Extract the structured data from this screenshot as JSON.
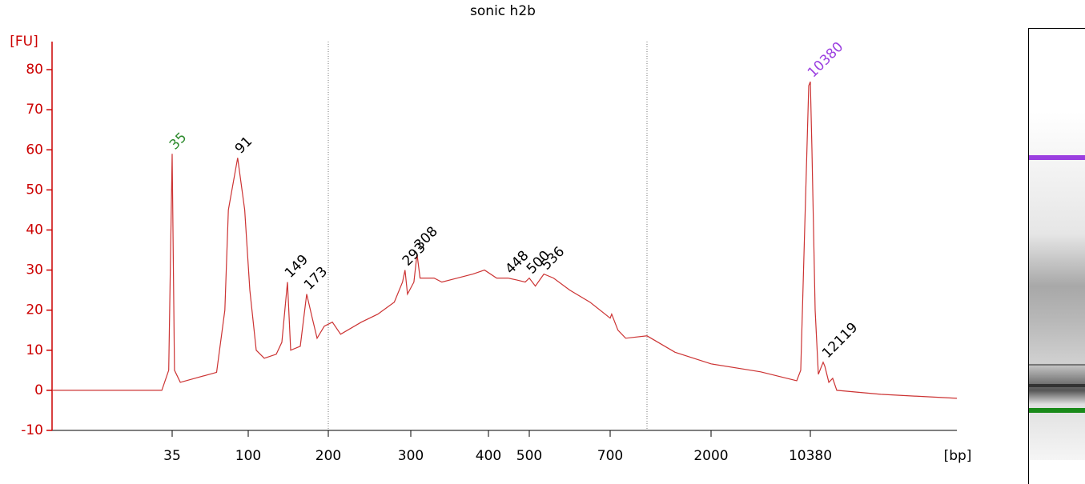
{
  "chart_data": {
    "type": "line",
    "title": "sonic h2b",
    "ylabel": "[FU]",
    "xlabel": "[bp]",
    "color": "#cc3333",
    "axis_color": "#cc0000",
    "xlim": [
      0,
      28000
    ],
    "xticks": [
      35,
      100,
      200,
      300,
      400,
      500,
      700,
      2000,
      10380
    ],
    "ylim": [
      -10,
      87
    ],
    "yticks": [
      -10,
      0,
      10,
      20,
      30,
      40,
      50,
      60,
      70,
      80
    ],
    "x": [
      0,
      15,
      32,
      34,
      35,
      37,
      42,
      73,
      80,
      83,
      91,
      97,
      102,
      110,
      120,
      135,
      142,
      149,
      153,
      165,
      173,
      180,
      186,
      195,
      205,
      215,
      240,
      260,
      280,
      290,
      293,
      296,
      304,
      308,
      312,
      330,
      340,
      360,
      380,
      395,
      420,
      448,
      470,
      490,
      500,
      515,
      536,
      560,
      600,
      650,
      700,
      720,
      800,
      900,
      1175,
      1536,
      2000,
      6190,
      9230,
      9570,
      9900,
      10245,
      10380,
      10570,
      10960,
      11340,
      11920,
      12119,
      12600,
      13070,
      13560,
      18850,
      28000
    ],
    "values": [
      0,
      0,
      0,
      5,
      59,
      5,
      2,
      4.5,
      20,
      45,
      58,
      45,
      25,
      10,
      8,
      9,
      12,
      27,
      10,
      11,
      24,
      18,
      13,
      16,
      17,
      14,
      17,
      19,
      22,
      27,
      30,
      24,
      27,
      34,
      28,
      28,
      27,
      28,
      29,
      30,
      28,
      28,
      27.5,
      27,
      28,
      26,
      29,
      28,
      25,
      22,
      18,
      19,
      15,
      13,
      13.6,
      9.5,
      6.6,
      4.6,
      2.4,
      5,
      40,
      76,
      77,
      60,
      20,
      4,
      7,
      6,
      2,
      3,
      0,
      -1,
      -2
    ],
    "peaks": {
      "x": [
        35,
        91,
        149,
        173,
        293,
        308,
        448,
        500,
        536,
        10380,
        12119
      ],
      "y": [
        59,
        58,
        27,
        24,
        30,
        34,
        28,
        28,
        29,
        77,
        7
      ],
      "colors": [
        "#2e8b2e",
        "#000000",
        "#000000",
        "#000000",
        "#000000",
        "#000000",
        "#000000",
        "#000000",
        "#000000",
        "#9b3fe0",
        "#000000"
      ]
    }
  }
}
